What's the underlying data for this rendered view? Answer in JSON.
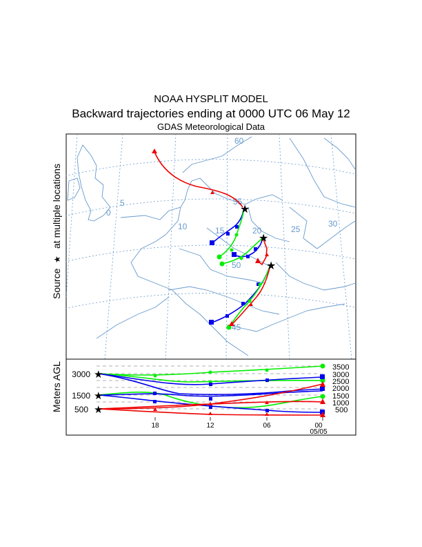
{
  "header": {
    "model": "NOAA HYSPLIT MODEL",
    "title": "Backward trajectories ending at 0000 UTC 06 May 12",
    "data_source": "GDAS Meteorological Data"
  },
  "map": {
    "side_label_prefix": "Source",
    "side_label_suffix": "at multiple locations",
    "source_symbol": "★",
    "longitude_labels": [
      "5",
      "0",
      "10",
      "15",
      "20",
      "25",
      "30"
    ],
    "latitude_labels": [
      "60",
      "55",
      "50",
      "45"
    ],
    "colors": {
      "red": "#ee0000",
      "blue": "#0000ee",
      "green": "#00ee00",
      "coast": "#6699cc",
      "grid": "#6699cc"
    }
  },
  "height_panel": {
    "ylabel": "Meters AGL",
    "left_ticks": [
      "3000",
      "1500",
      "500"
    ],
    "right_ticks": [
      "3500",
      "3000",
      "2500",
      "2000",
      "1500",
      "1000",
      "500"
    ],
    "time_labels": [
      "18",
      "12",
      "06",
      "00"
    ],
    "date_label": "05/05"
  }
}
